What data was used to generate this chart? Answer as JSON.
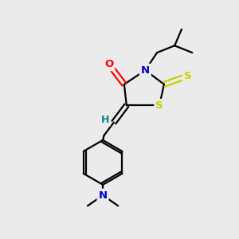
{
  "bg_color": "#ebebeb",
  "atom_colors": {
    "C": "#000000",
    "N": "#0000cc",
    "O": "#ff0000",
    "S": "#cccc00",
    "H": "#008888"
  }
}
